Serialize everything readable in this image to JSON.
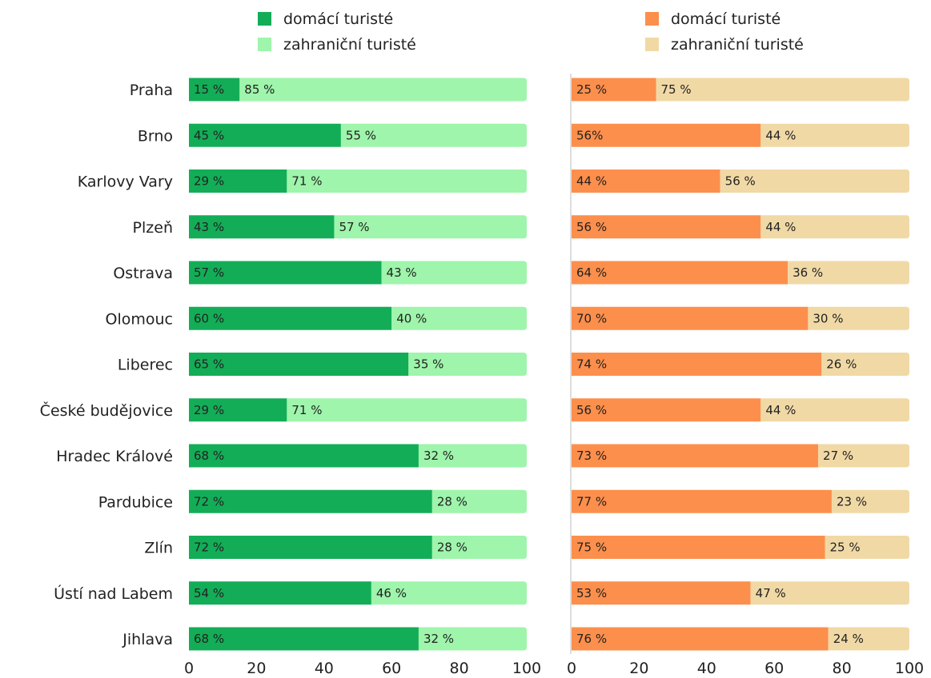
{
  "chart_data": [
    {
      "type": "bar",
      "stacked": true,
      "orientation": "horizontal",
      "categories": [
        "Praha",
        "Brno",
        "Karlovy Vary",
        "Plzeň",
        "Ostrava",
        "Olomouc",
        "Liberec",
        "České budějovice",
        "Hradec Králové",
        "Pardubice",
        "Zlín",
        "Ústí nad Labem",
        "Jihlava"
      ],
      "series": [
        {
          "name": "domácí turisté",
          "color": "#13ad57",
          "values": [
            15,
            45,
            29,
            43,
            57,
            60,
            65,
            29,
            68,
            72,
            72,
            54,
            68
          ],
          "labels": [
            "15 %",
            "45 %",
            "29 %",
            "43 %",
            "57 %",
            "60 %",
            "65 %",
            "29 %",
            "68 %",
            "72 %",
            "72 %",
            "54 %",
            "68 %"
          ]
        },
        {
          "name": "zahraniční turisté",
          "color": "#9ef5ab",
          "values": [
            85,
            55,
            71,
            57,
            43,
            40,
            35,
            71,
            32,
            28,
            28,
            46,
            32
          ],
          "labels": [
            "85 %",
            "55 %",
            "71 %",
            "57 %",
            "43 %",
            "40 %",
            "35 %",
            "71 %",
            "32 %",
            "28 %",
            "28 %",
            "46 %",
            "32 %"
          ]
        }
      ],
      "xlim": [
        0,
        100
      ],
      "xticks": [
        "0",
        "20",
        "40",
        "60",
        "80",
        "100"
      ],
      "legend": "top"
    },
    {
      "type": "bar",
      "stacked": true,
      "orientation": "horizontal",
      "categories": [
        "Praha",
        "Brno",
        "Karlovy Vary",
        "Plzeň",
        "Ostrava",
        "Olomouc",
        "Liberec",
        "České budějovice",
        "Hradec Králové",
        "Pardubice",
        "Zlín",
        "Ústí nad Labem",
        "Jihlava"
      ],
      "series": [
        {
          "name": "domácí turisté",
          "color": "#fd8f4c",
          "values": [
            25,
            56,
            44,
            56,
            64,
            70,
            74,
            56,
            73,
            77,
            75,
            53,
            76
          ],
          "labels": [
            "25 %",
            "56%",
            "44 %",
            "56 %",
            "64 %",
            "70 %",
            "74 %",
            "56 %",
            "73 %",
            "77 %",
            "75 %",
            "53 %",
            "76 %"
          ]
        },
        {
          "name": "zahraniční turisté",
          "color": "#f1d9a6",
          "values": [
            75,
            44,
            56,
            44,
            36,
            30,
            26,
            44,
            27,
            23,
            25,
            47,
            24
          ],
          "labels": [
            "75 %",
            "44 %",
            "56 %",
            "44 %",
            "36 %",
            "30 %",
            "26 %",
            "44 %",
            "27 %",
            "23 %",
            "25 %",
            "47 %",
            "24 %"
          ]
        }
      ],
      "xlim": [
        0,
        100
      ],
      "xticks": [
        "0",
        "20",
        "40",
        "60",
        "80",
        "100"
      ],
      "legend": "top"
    }
  ]
}
